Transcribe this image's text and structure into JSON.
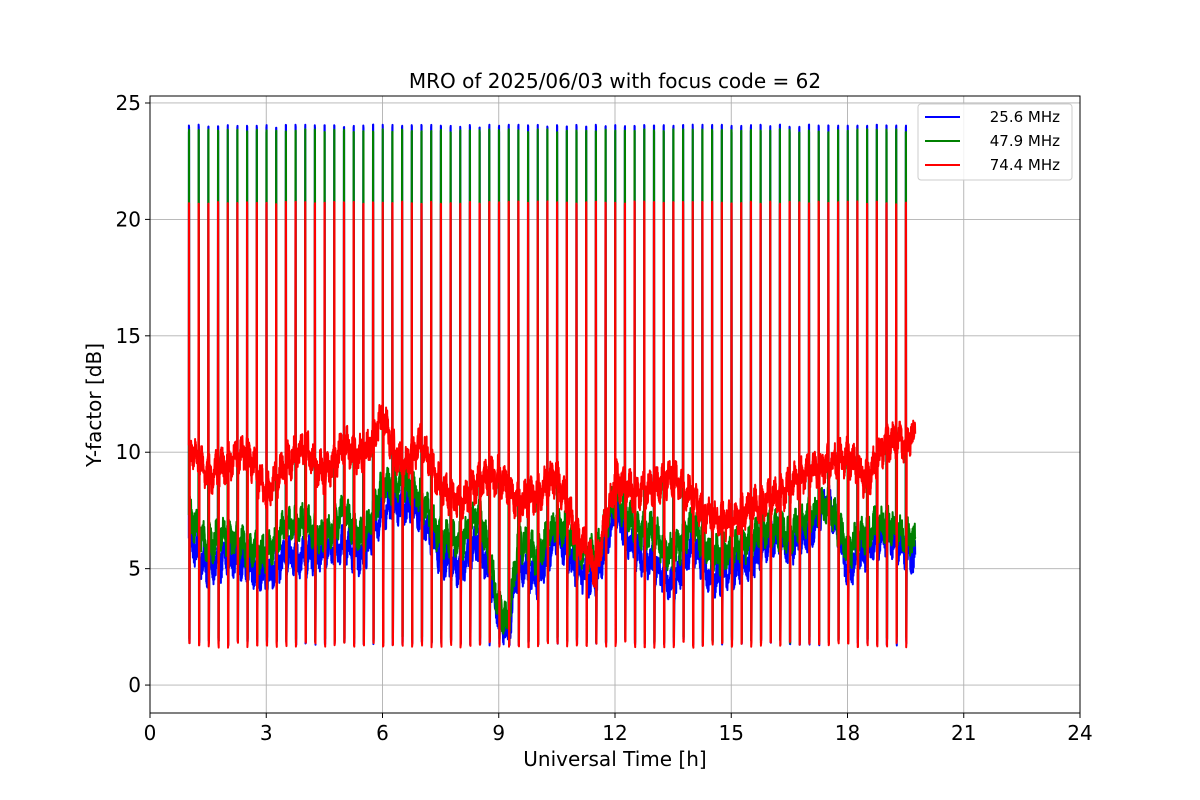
{
  "chart_data": {
    "type": "line",
    "title": "MRO of 2025/06/03 with focus code = 62",
    "xlabel": "Universal Time [h]",
    "ylabel": "Y-factor [dB]",
    "xlim": [
      0,
      24
    ],
    "ylim": [
      -1.2,
      25.3
    ],
    "xticks": [
      0,
      3,
      6,
      9,
      12,
      15,
      18,
      21,
      24
    ],
    "yticks": [
      0,
      5,
      10,
      15,
      20,
      25
    ],
    "grid": true,
    "legend_position": "top-right",
    "cal_period_h": 0.25,
    "series": [
      {
        "name": "25.6 MHz",
        "color": "#0000ff",
        "x_range": [
          1.0,
          19.75
        ],
        "spike_peak": 24.0,
        "spike_low": 1.7,
        "baseline": [
          [
            1.0,
            6.3
          ],
          [
            1.5,
            5.0
          ],
          [
            2.0,
            5.5
          ],
          [
            2.5,
            5.2
          ],
          [
            3.0,
            4.6
          ],
          [
            3.5,
            5.6
          ],
          [
            4.0,
            5.5
          ],
          [
            4.5,
            5.8
          ],
          [
            5.0,
            6.0
          ],
          [
            5.5,
            5.5
          ],
          [
            6.0,
            7.5
          ],
          [
            6.5,
            7.8
          ],
          [
            7.0,
            7.4
          ],
          [
            7.5,
            5.5
          ],
          [
            8.0,
            5.0
          ],
          [
            8.5,
            6.3
          ],
          [
            9.0,
            3.0
          ],
          [
            9.25,
            2.2
          ],
          [
            9.5,
            5.2
          ],
          [
            10.0,
            4.5
          ],
          [
            10.5,
            6.5
          ],
          [
            11.0,
            5.0
          ],
          [
            11.5,
            4.5
          ],
          [
            12.0,
            7.5
          ],
          [
            12.5,
            5.8
          ],
          [
            13.0,
            5.2
          ],
          [
            13.5,
            4.2
          ],
          [
            14.0,
            6.0
          ],
          [
            14.5,
            4.5
          ],
          [
            15.0,
            5.0
          ],
          [
            15.5,
            5.2
          ],
          [
            16.0,
            6.4
          ],
          [
            16.5,
            6.0
          ],
          [
            17.0,
            6.5
          ],
          [
            17.5,
            8.0
          ],
          [
            18.0,
            5.0
          ],
          [
            18.5,
            5.8
          ],
          [
            19.0,
            6.5
          ],
          [
            19.5,
            5.8
          ],
          [
            19.75,
            5.4
          ]
        ]
      },
      {
        "name": "47.9 MHz",
        "color": "#008000",
        "x_range": [
          1.0,
          19.75
        ],
        "spike_peak": 23.8,
        "spike_low": 1.8,
        "baseline": [
          [
            1.0,
            7.3
          ],
          [
            1.5,
            6.0
          ],
          [
            2.0,
            6.5
          ],
          [
            2.5,
            5.8
          ],
          [
            3.0,
            5.6
          ],
          [
            3.5,
            6.8
          ],
          [
            4.0,
            7.0
          ],
          [
            4.5,
            6.2
          ],
          [
            5.0,
            7.5
          ],
          [
            5.5,
            6.2
          ],
          [
            6.0,
            8.5
          ],
          [
            6.5,
            8.8
          ],
          [
            7.0,
            8.0
          ],
          [
            7.5,
            6.3
          ],
          [
            8.0,
            6.1
          ],
          [
            8.5,
            7.5
          ],
          [
            9.0,
            3.5
          ],
          [
            9.25,
            2.5
          ],
          [
            9.5,
            6.3
          ],
          [
            10.0,
            5.5
          ],
          [
            10.5,
            7.0
          ],
          [
            11.0,
            6.0
          ],
          [
            11.5,
            5.5
          ],
          [
            12.0,
            8.2
          ],
          [
            12.5,
            6.8
          ],
          [
            13.0,
            6.5
          ],
          [
            13.5,
            5.5
          ],
          [
            14.0,
            7.0
          ],
          [
            14.5,
            5.5
          ],
          [
            15.0,
            5.8
          ],
          [
            15.5,
            6.2
          ],
          [
            16.0,
            6.8
          ],
          [
            16.5,
            6.5
          ],
          [
            17.0,
            7.2
          ],
          [
            17.5,
            7.8
          ],
          [
            18.0,
            5.8
          ],
          [
            18.5,
            6.6
          ],
          [
            19.0,
            7.0
          ],
          [
            19.5,
            6.4
          ],
          [
            19.75,
            6.2
          ]
        ]
      },
      {
        "name": "74.4 MHz",
        "color": "#ff0000",
        "x_range": [
          1.0,
          19.75
        ],
        "spike_peak": 20.7,
        "spike_low": 1.6,
        "baseline": [
          [
            1.0,
            10.3
          ],
          [
            1.5,
            9.0
          ],
          [
            2.0,
            9.5
          ],
          [
            2.5,
            10.0
          ],
          [
            3.0,
            8.2
          ],
          [
            3.5,
            9.5
          ],
          [
            4.0,
            10.2
          ],
          [
            4.5,
            9.0
          ],
          [
            5.0,
            10.3
          ],
          [
            5.5,
            9.8
          ],
          [
            6.0,
            11.5
          ],
          [
            6.5,
            9.3
          ],
          [
            7.0,
            10.5
          ],
          [
            7.5,
            8.5
          ],
          [
            8.0,
            7.8
          ],
          [
            8.5,
            8.8
          ],
          [
            9.0,
            9.0
          ],
          [
            9.5,
            7.8
          ],
          [
            10.0,
            8.2
          ],
          [
            10.5,
            9.0
          ],
          [
            11.0,
            6.5
          ],
          [
            11.5,
            5.0
          ],
          [
            12.0,
            8.8
          ],
          [
            12.5,
            8.3
          ],
          [
            13.0,
            8.5
          ],
          [
            13.5,
            9.0
          ],
          [
            14.0,
            8.0
          ],
          [
            14.5,
            7.2
          ],
          [
            15.0,
            7.0
          ],
          [
            15.5,
            7.6
          ],
          [
            16.0,
            8.0
          ],
          [
            16.5,
            8.5
          ],
          [
            17.0,
            9.2
          ],
          [
            17.5,
            9.5
          ],
          [
            18.0,
            9.8
          ],
          [
            18.5,
            8.8
          ],
          [
            19.0,
            10.5
          ],
          [
            19.5,
            10.4
          ],
          [
            19.75,
            10.8
          ]
        ]
      }
    ]
  }
}
